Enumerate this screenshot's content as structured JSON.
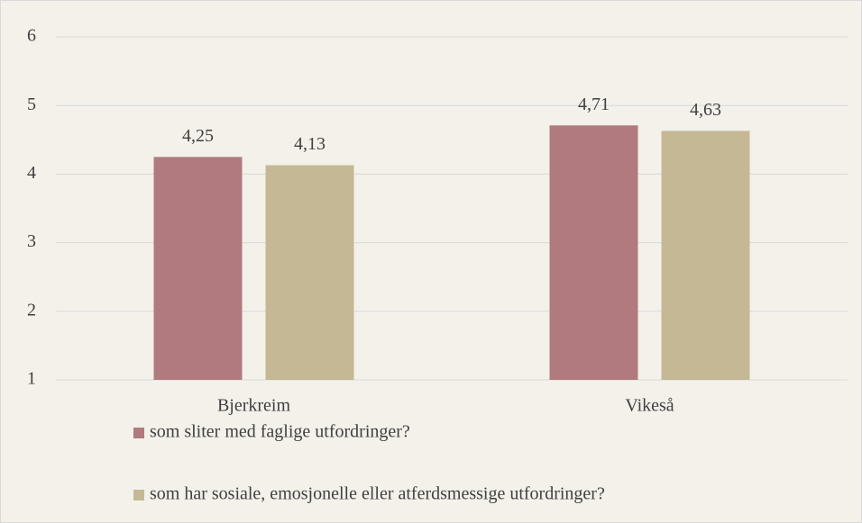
{
  "chart_data": {
    "type": "bar",
    "categories": [
      "Bjerkreim",
      "Vikeså"
    ],
    "series": [
      {
        "name": "som sliter med faglige utfordringer?",
        "color": "#b07a7e",
        "values": [
          4.25,
          4.71
        ],
        "value_labels": [
          "4,25",
          "4,71"
        ]
      },
      {
        "name": "som har sosiale, emosjonelle eller atferdsmessige utfordringer?",
        "color": "#c4b994",
        "values": [
          4.13,
          4.63
        ],
        "value_labels": [
          "4,13",
          "4,63"
        ]
      }
    ],
    "ylim": [
      1,
      6
    ],
    "yticks": [
      1,
      2,
      3,
      4,
      5,
      6
    ],
    "grid": true,
    "legend": "bottom"
  }
}
